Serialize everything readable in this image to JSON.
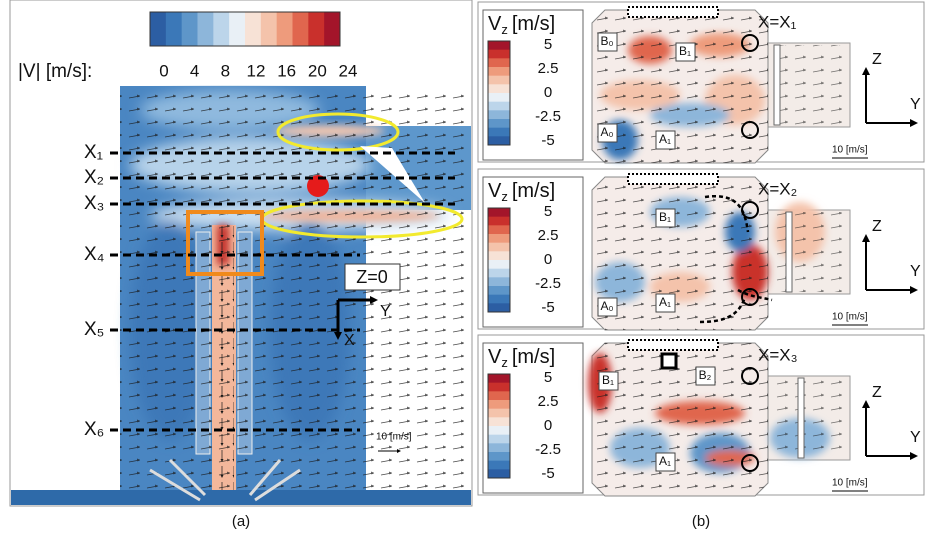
{
  "panel_a": {
    "colorbar": {
      "label": "|V| [m/s]:",
      "ticks": [
        0,
        4,
        8,
        12,
        16,
        20,
        24
      ]
    },
    "stations": [
      "X₁",
      "X₂",
      "X₃",
      "X₄",
      "X₅",
      "X₆"
    ],
    "plane_label": "Z=0",
    "axes": {
      "horizontal": "Y",
      "vertical": "X"
    },
    "scale_label": "10 [m/s]",
    "caption": "(a)"
  },
  "panel_b": {
    "caption": "(b)",
    "panels": [
      {
        "legend": {
          "symbol": "V",
          "sub": "z",
          "unit": "[m/s]",
          "ticks": [
            5,
            2.5,
            0,
            -2.5,
            -5
          ]
        },
        "station": "X=X₁",
        "regions": [
          "B₀",
          "B₁",
          "A₀",
          "A₁"
        ],
        "axes": {
          "vertical": "Z",
          "horizontal": "Y"
        },
        "scale_label": "10 [m/s]"
      },
      {
        "legend": {
          "symbol": "V",
          "sub": "z",
          "unit": "[m/s]",
          "ticks": [
            5,
            2.5,
            0,
            -2.5,
            -5
          ]
        },
        "station": "X=X₂",
        "regions": [
          "B₁",
          "A₀",
          "A₁"
        ],
        "axes": {
          "vertical": "Z",
          "horizontal": "Y"
        },
        "scale_label": "10 [m/s]"
      },
      {
        "legend": {
          "symbol": "V",
          "sub": "z",
          "unit": "[m/s]",
          "ticks": [
            5,
            2.5,
            0,
            -2.5,
            -5
          ]
        },
        "station": "X=X₃",
        "regions": [
          "B₁",
          "B₂",
          "A₁"
        ],
        "axes": {
          "vertical": "Z",
          "horizontal": "Y"
        },
        "scale_label": "10 [m/s]"
      }
    ]
  }
}
